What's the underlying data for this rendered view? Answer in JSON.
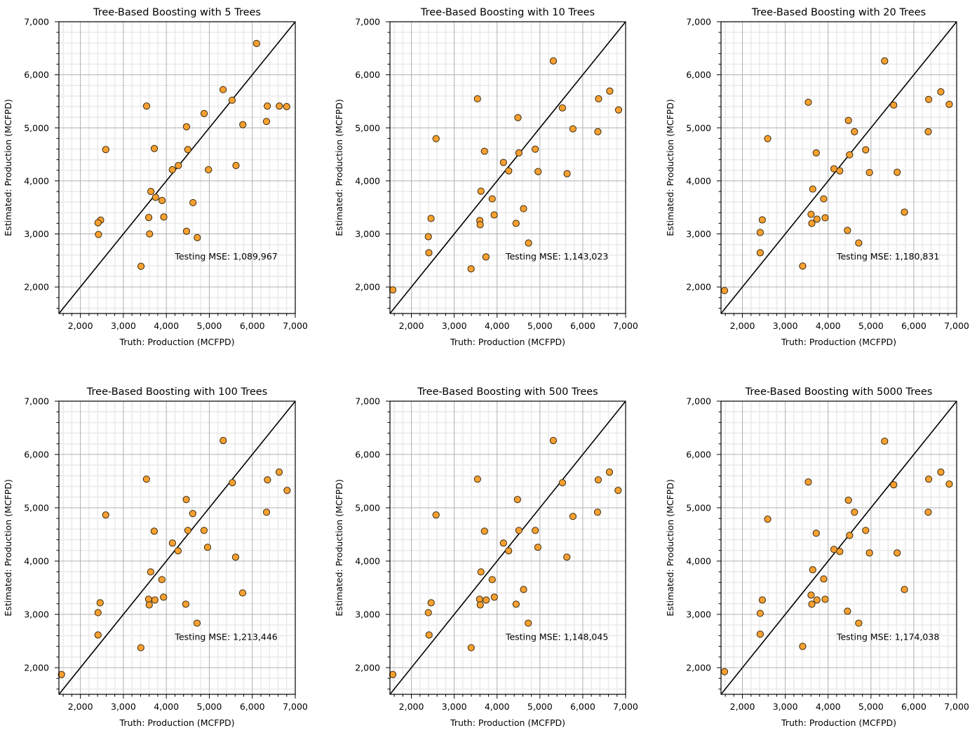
{
  "chart_data": [
    {
      "type": "scatter",
      "title": "Tree-Based Boosting with 5 Trees",
      "xlabel": "Truth: Production (MCFPD)",
      "ylabel": "Estimated: Production (MCFPD)",
      "xlim": [
        1500,
        7000
      ],
      "ylim": [
        1500,
        7000
      ],
      "xticks": [
        "2,000",
        "3,000",
        "4,000",
        "5,000",
        "6,000",
        "7,000"
      ],
      "yticks": [
        "2,000",
        "3,000",
        "4,000",
        "5,000",
        "6,000",
        "7,000"
      ],
      "grid": true,
      "reference_line": "y = x",
      "annotation": "Testing MSE: 1,089,967",
      "marker_color": "#f7a030",
      "points": [
        [
          6100,
          6590
        ],
        [
          5320,
          5720
        ],
        [
          5530,
          5520
        ],
        [
          3540,
          5410
        ],
        [
          6350,
          5410
        ],
        [
          6630,
          5410
        ],
        [
          6800,
          5400
        ],
        [
          4880,
          5270
        ],
        [
          6330,
          5120
        ],
        [
          4470,
          5020
        ],
        [
          5780,
          5060
        ],
        [
          2590,
          4590
        ],
        [
          3720,
          4610
        ],
        [
          4500,
          4590
        ],
        [
          4140,
          4210
        ],
        [
          4280,
          4290
        ],
        [
          4980,
          4210
        ],
        [
          5620,
          4290
        ],
        [
          3640,
          3800
        ],
        [
          3750,
          3690
        ],
        [
          3900,
          3630
        ],
        [
          4620,
          3590
        ],
        [
          3590,
          3310
        ],
        [
          3940,
          3320
        ],
        [
          2470,
          3260
        ],
        [
          2410,
          3210
        ],
        [
          2420,
          2990
        ],
        [
          3610,
          3000
        ],
        [
          4470,
          3050
        ],
        [
          4720,
          2930
        ],
        [
          3410,
          2390
        ]
      ]
    },
    {
      "type": "scatter",
      "title": "Tree-Based Boosting with 10 Trees",
      "xlabel": "Truth: Production (MCFPD)",
      "ylabel": "Estimated: Production (MCFPD)",
      "xlim": [
        1500,
        7000
      ],
      "ylim": [
        1500,
        7000
      ],
      "xticks": [
        "2,000",
        "3,000",
        "4,000",
        "5,000",
        "6,000",
        "7,000"
      ],
      "yticks": [
        "2,000",
        "3,000",
        "4,000",
        "5,000",
        "6,000",
        "7,000"
      ],
      "grid": true,
      "reference_line": "y = x",
      "annotation": "Testing MSE: 1,143,023",
      "marker_color": "#f7a030",
      "points": [
        [
          1566,
          1945
        ],
        [
          5312,
          6261
        ],
        [
          3542,
          5548
        ],
        [
          6630,
          5693
        ],
        [
          6369,
          5548
        ],
        [
          5525,
          5376
        ],
        [
          6836,
          5337
        ],
        [
          4487,
          5192
        ],
        [
          2576,
          4796
        ],
        [
          5770,
          4981
        ],
        [
          6352,
          4928
        ],
        [
          3706,
          4558
        ],
        [
          4891,
          4598
        ],
        [
          4509,
          4528
        ],
        [
          4149,
          4347
        ],
        [
          4271,
          4189
        ],
        [
          4957,
          4176
        ],
        [
          5634,
          4136
        ],
        [
          3624,
          3806
        ],
        [
          3887,
          3661
        ],
        [
          4618,
          3476
        ],
        [
          3932,
          3358
        ],
        [
          2458,
          3292
        ],
        [
          3597,
          3252
        ],
        [
          3606,
          3173
        ],
        [
          4443,
          3199
        ],
        [
          2396,
          2948
        ],
        [
          4734,
          2829
        ],
        [
          2408,
          2645
        ],
        [
          3740,
          2566
        ],
        [
          3393,
          2342
        ]
      ]
    },
    {
      "type": "scatter",
      "title": "Tree-Based Boosting with 20 Trees",
      "xlabel": "Truth: Production (MCFPD)",
      "ylabel": "Estimated: Production (MCFPD)",
      "xlim": [
        1500,
        7000
      ],
      "ylim": [
        1500,
        7000
      ],
      "xticks": [
        "2,000",
        "3,000",
        "4,000",
        "5,000",
        "6,000",
        "7,000"
      ],
      "yticks": [
        "2,000",
        "3,000",
        "4,000",
        "5,000",
        "6,000",
        "7,000"
      ],
      "grid": true,
      "reference_line": "y = x",
      "annotation": "Testing MSE: 1,180,831",
      "marker_color": "#f7a030",
      "points": [
        [
          1582,
          1932
        ],
        [
          5318,
          6261
        ],
        [
          3537,
          5482
        ],
        [
          6630,
          5680
        ],
        [
          6347,
          5535
        ],
        [
          5530,
          5429
        ],
        [
          6827,
          5443
        ],
        [
          4474,
          5139
        ],
        [
          4615,
          4928
        ],
        [
          2589,
          4796
        ],
        [
          6336,
          4928
        ],
        [
          3722,
          4528
        ],
        [
          4877,
          4585
        ],
        [
          4501,
          4492
        ],
        [
          4136,
          4228
        ],
        [
          4272,
          4189
        ],
        [
          4964,
          4158
        ],
        [
          5612,
          4162
        ],
        [
          3641,
          3846
        ],
        [
          3897,
          3661
        ],
        [
          5781,
          3410
        ],
        [
          3602,
          3370
        ],
        [
          2464,
          3265
        ],
        [
          3739,
          3278
        ],
        [
          3930,
          3305
        ],
        [
          3619,
          3199
        ],
        [
          4452,
          3067
        ],
        [
          2415,
          3027
        ],
        [
          4714,
          2829
        ],
        [
          2415,
          2645
        ],
        [
          3406,
          2394
        ]
      ]
    },
    {
      "type": "scatter",
      "title": "Tree-Based Boosting with 100 Trees",
      "xlabel": "Truth: Production (MCFPD)",
      "ylabel": "Estimated: Production (MCFPD)",
      "xlim": [
        1500,
        7000
      ],
      "ylim": [
        1500,
        7000
      ],
      "xticks": [
        "2,000",
        "3,000",
        "4,000",
        "5,000",
        "6,000",
        "7,000"
      ],
      "yticks": [
        "2,000",
        "3,000",
        "4,000",
        "5,000",
        "6,000",
        "7,000"
      ],
      "grid": true,
      "reference_line": "y = x",
      "annotation": "Testing MSE: 1,213,446",
      "marker_color": "#f7a030",
      "points": [
        [
          1560,
          1872
        ],
        [
          5323,
          6262
        ],
        [
          3537,
          5537
        ],
        [
          6625,
          5669
        ],
        [
          6353,
          5524
        ],
        [
          5536,
          5471
        ],
        [
          6810,
          5326
        ],
        [
          4463,
          5155
        ],
        [
          4615,
          4891
        ],
        [
          2589,
          4865
        ],
        [
          6331,
          4917
        ],
        [
          3717,
          4561
        ],
        [
          4877,
          4575
        ],
        [
          4501,
          4575
        ],
        [
          4142,
          4337
        ],
        [
          4272,
          4192
        ],
        [
          4959,
          4258
        ],
        [
          5612,
          4074
        ],
        [
          3635,
          3797
        ],
        [
          3896,
          3652
        ],
        [
          5775,
          3402
        ],
        [
          3935,
          3322
        ],
        [
          3586,
          3283
        ],
        [
          3733,
          3270
        ],
        [
          3602,
          3178
        ],
        [
          2459,
          3217
        ],
        [
          4452,
          3191
        ],
        [
          2410,
          3032
        ],
        [
          4714,
          2835
        ],
        [
          2410,
          2613
        ],
        [
          3406,
          2374
        ]
      ]
    },
    {
      "type": "scatter",
      "title": "Tree-Based Boosting with 500 Trees",
      "xlabel": "Truth: Production (MCFPD)",
      "ylabel": "Estimated: Production (MCFPD)",
      "xlim": [
        1500,
        7000
      ],
      "ylim": [
        1500,
        7000
      ],
      "xticks": [
        "2,000",
        "3,000",
        "4,000",
        "5,000",
        "6,000",
        "7,000"
      ],
      "yticks": [
        "2,000",
        "3,000",
        "4,000",
        "5,000",
        "6,000",
        "7,000"
      ],
      "grid": true,
      "reference_line": "y = x",
      "annotation": "Testing MSE: 1,148,045",
      "marker_color": "#f7a030",
      "points": [
        [
          1566,
          1872
        ],
        [
          5312,
          6262
        ],
        [
          3543,
          5537
        ],
        [
          6623,
          5669
        ],
        [
          6361,
          5524
        ],
        [
          5525,
          5471
        ],
        [
          6825,
          5326
        ],
        [
          4477,
          5155
        ],
        [
          2576,
          4865
        ],
        [
          5771,
          4838
        ],
        [
          6344,
          4917
        ],
        [
          3706,
          4561
        ],
        [
          4892,
          4575
        ],
        [
          4509,
          4575
        ],
        [
          4149,
          4337
        ],
        [
          4269,
          4192
        ],
        [
          4952,
          4258
        ],
        [
          5629,
          4074
        ],
        [
          3624,
          3797
        ],
        [
          3887,
          3652
        ],
        [
          4619,
          3467
        ],
        [
          3936,
          3322
        ],
        [
          3592,
          3283
        ],
        [
          3745,
          3270
        ],
        [
          3608,
          3178
        ],
        [
          2461,
          3217
        ],
        [
          4444,
          3191
        ],
        [
          2396,
          3032
        ],
        [
          4728,
          2835
        ],
        [
          2412,
          2613
        ],
        [
          3395,
          2374
        ]
      ]
    },
    {
      "type": "scatter",
      "title": "Tree-Based Boosting with 5000 Trees",
      "xlabel": "Truth: Production (MCFPD)",
      "ylabel": "Estimated: Production (MCFPD)",
      "xlim": [
        1500,
        7000
      ],
      "ylim": [
        1500,
        7000
      ],
      "xticks": [
        "2,000",
        "3,000",
        "4,000",
        "5,000",
        "6,000",
        "7,000"
      ],
      "yticks": [
        "2,000",
        "3,000",
        "4,000",
        "5,000",
        "6,000",
        "7,000"
      ],
      "grid": true,
      "reference_line": "y = x",
      "annotation": "Testing MSE: 1,174,038",
      "marker_color": "#f7a030",
      "points": [
        [
          1582,
          1925
        ],
        [
          5318,
          6249
        ],
        [
          3537,
          5484
        ],
        [
          6631,
          5669
        ],
        [
          6347,
          5537
        ],
        [
          5530,
          5431
        ],
        [
          6827,
          5445
        ],
        [
          4474,
          5141
        ],
        [
          4615,
          4917
        ],
        [
          2589,
          4786
        ],
        [
          6336,
          4917
        ],
        [
          3722,
          4522
        ],
        [
          4877,
          4575
        ],
        [
          4501,
          4482
        ],
        [
          4136,
          4219
        ],
        [
          4272,
          4179
        ],
        [
          4964,
          4153
        ],
        [
          5612,
          4153
        ],
        [
          3641,
          3837
        ],
        [
          3897,
          3665
        ],
        [
          5781,
          3467
        ],
        [
          3602,
          3362
        ],
        [
          2464,
          3270
        ],
        [
          3739,
          3270
        ],
        [
          3930,
          3283
        ],
        [
          3619,
          3191
        ],
        [
          4452,
          3059
        ],
        [
          2415,
          3019
        ],
        [
          4714,
          2835
        ],
        [
          2415,
          2629
        ],
        [
          3406,
          2400
        ]
      ]
    }
  ]
}
